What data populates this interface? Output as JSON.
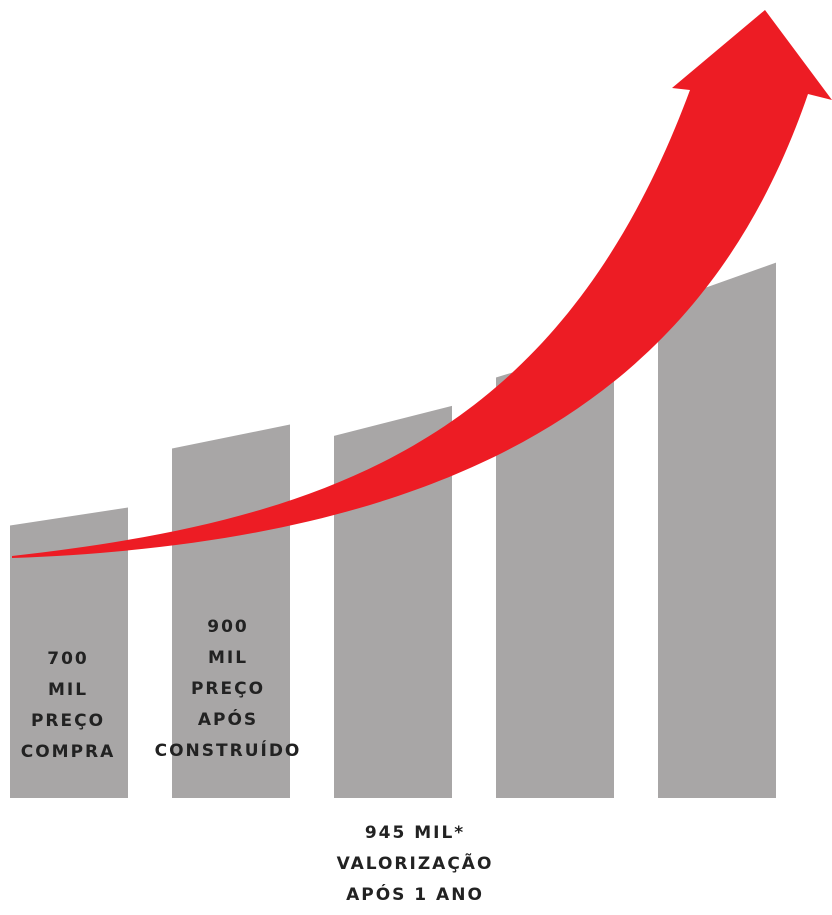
{
  "chart_data": {
    "type": "bar",
    "categories": [
      "700 MIL PREÇO COMPRA",
      "900 MIL PREÇO APÓS CONSTRUÍDO",
      "",
      "",
      ""
    ],
    "values": [
      700,
      900,
      945,
      1100,
      1290
    ],
    "bar_color": "#a8a6a6",
    "arrow_color": "#ed1c24",
    "grid": false,
    "legend": "none"
  },
  "labels": {
    "bar1": [
      "700",
      "MIL",
      "PREÇO",
      "COMPRA"
    ],
    "bar2": [
      "900",
      "MIL",
      "PREÇO",
      "APÓS",
      "CONSTRUÍDO"
    ]
  },
  "caption": [
    "945 MIL*",
    "VALORIZAÇÃO",
    "APÓS 1 ANO"
  ]
}
